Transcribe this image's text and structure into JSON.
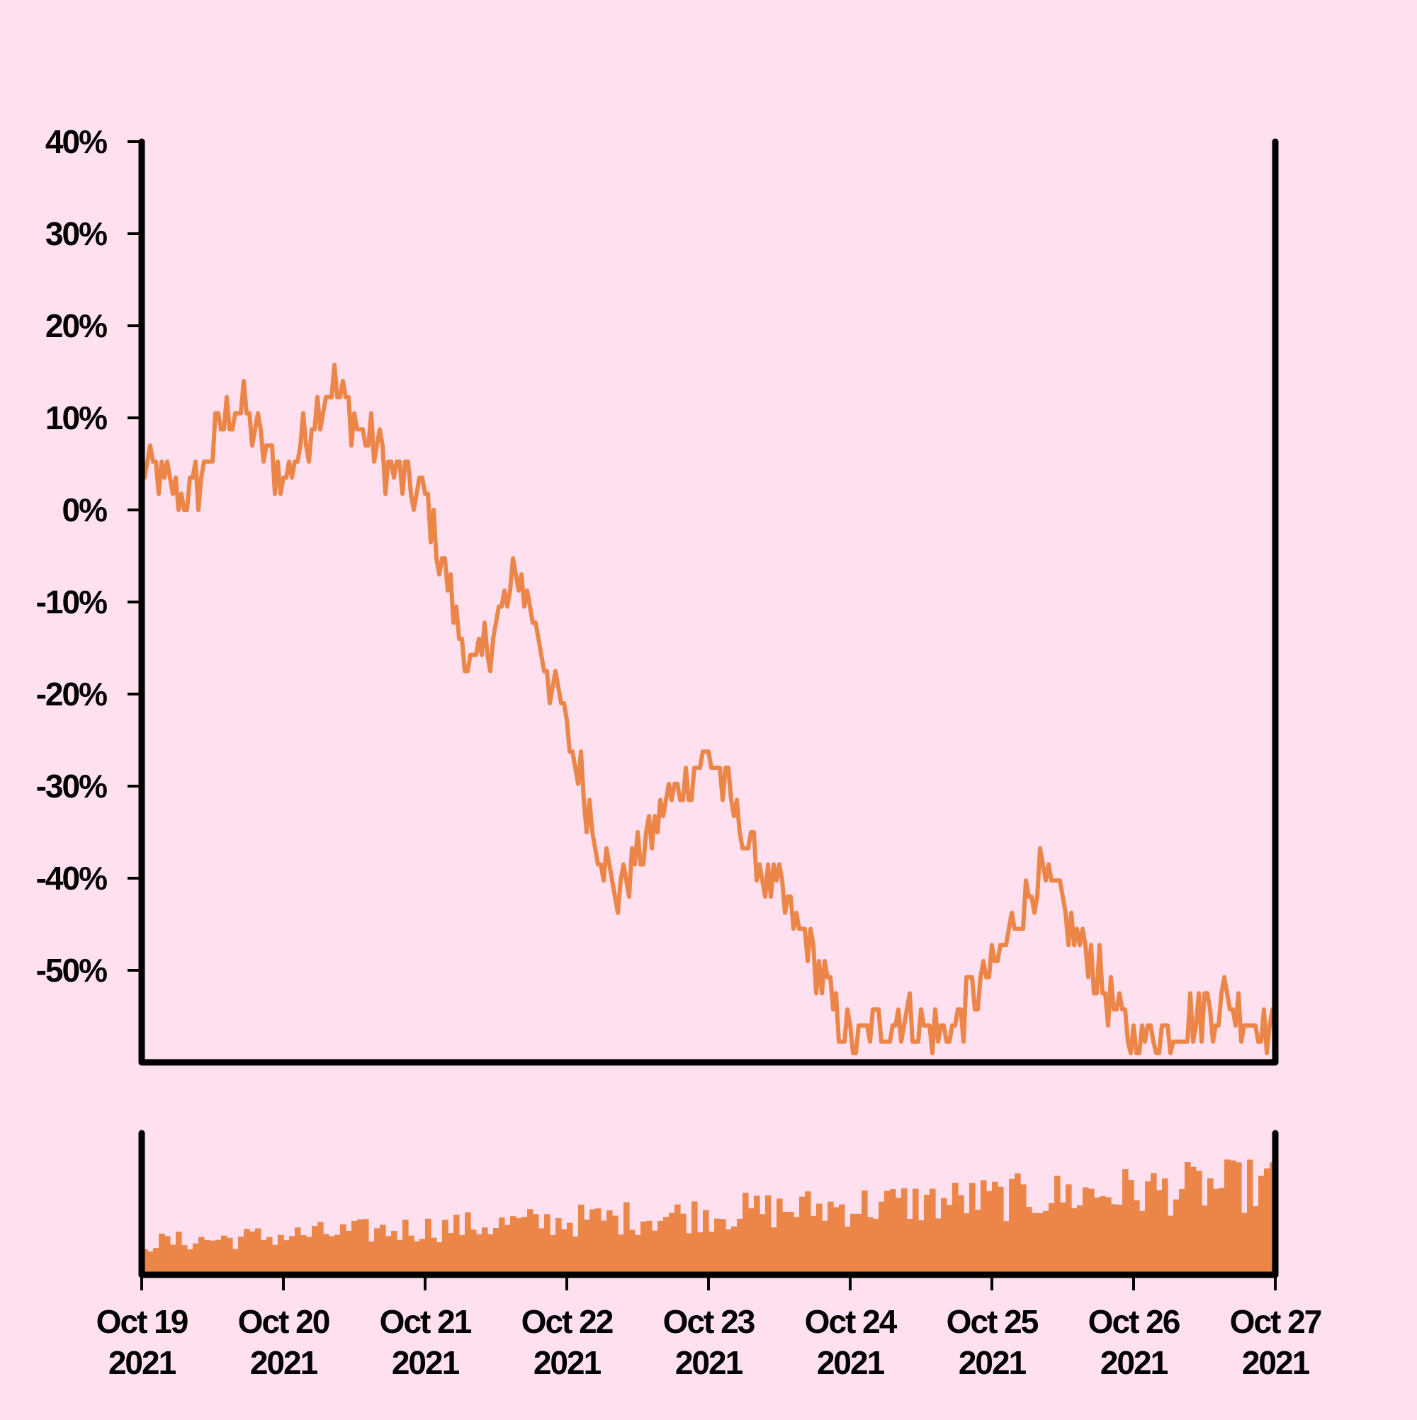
{
  "colors": {
    "background": "#ffe0ef",
    "frame": "#000000",
    "series": "#ec8548"
  },
  "chart_data": [
    {
      "type": "line",
      "panel": "price",
      "y_unit": "%",
      "ylim": [
        -60,
        40
      ],
      "xlim": [
        "2021-10-19",
        "2021-10-27"
      ],
      "y_ticks": [
        "40%",
        "30%",
        "20%",
        "10%",
        "0%",
        "-10%",
        "-20%",
        "-30%",
        "-40%",
        "-50%"
      ],
      "y_tick_values": [
        40,
        30,
        20,
        10,
        0,
        -10,
        -20,
        -30,
        -40,
        -50
      ],
      "grid": false,
      "x": [
        "2021-10-19T00:00",
        "2021-10-19T08:00",
        "2021-10-19T16:00",
        "2021-10-20T00:00",
        "2021-10-20T08:00",
        "2021-10-20T16:00",
        "2021-10-21T00:00",
        "2021-10-21T08:00",
        "2021-10-21T16:00",
        "2021-10-22T00:00",
        "2021-10-22T08:00",
        "2021-10-22T16:00",
        "2021-10-23T00:00",
        "2021-10-23T08:00",
        "2021-10-23T16:00",
        "2021-10-24T00:00",
        "2021-10-24T08:00",
        "2021-10-24T16:00",
        "2021-10-25T00:00",
        "2021-10-25T08:00",
        "2021-10-25T16:00",
        "2021-10-26T00:00",
        "2021-10-26T08:00",
        "2021-10-26T16:00",
        "2021-10-27T00:00"
      ],
      "values": [
        5,
        1,
        12,
        3,
        14,
        6,
        1,
        -18,
        -7,
        -24,
        -42,
        -33,
        -26,
        -38,
        -46,
        -58,
        -55,
        -57,
        -50,
        -39,
        -48,
        -58,
        -56,
        -53,
        -57
      ]
    },
    {
      "type": "bar",
      "panel": "volume",
      "bar_count": 200,
      "trend_start": 0.28,
      "trend_end": 0.8,
      "grid": false
    }
  ],
  "x_axis": {
    "ticks": [
      {
        "date": "Oct 19",
        "year": "2021"
      },
      {
        "date": "Oct 20",
        "year": "2021"
      },
      {
        "date": "Oct 21",
        "year": "2021"
      },
      {
        "date": "Oct 22",
        "year": "2021"
      },
      {
        "date": "Oct 23",
        "year": "2021"
      },
      {
        "date": "Oct 24",
        "year": "2021"
      },
      {
        "date": "Oct 25",
        "year": "2021"
      },
      {
        "date": "Oct 26",
        "year": "2021"
      },
      {
        "date": "Oct 27",
        "year": "2021"
      }
    ]
  }
}
